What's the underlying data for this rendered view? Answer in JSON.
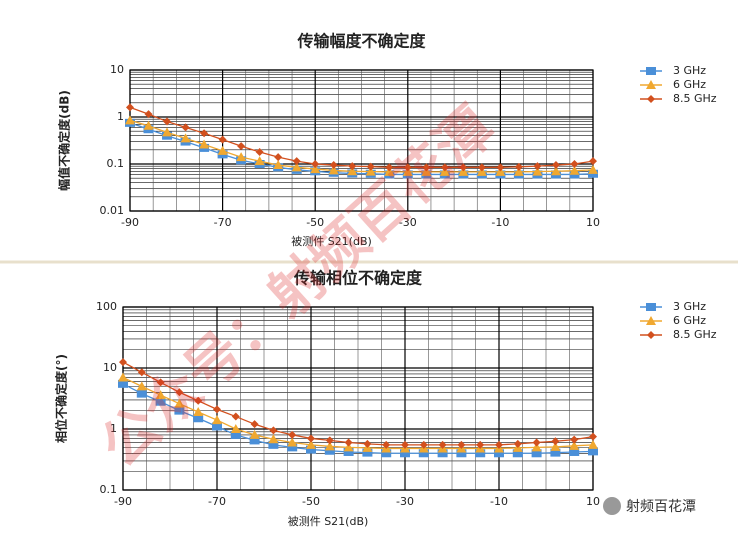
{
  "chart_data": [
    {
      "type": "line",
      "title": "传输幅度不确定度",
      "xlabel": "被测件 S21(dB)",
      "ylabel": "幅值不确定度(dB)",
      "x": [
        -90,
        -86,
        -82,
        -78,
        -74,
        -70,
        -66,
        -62,
        -58,
        -54,
        -50,
        -46,
        -42,
        -38,
        -34,
        -30,
        -26,
        -22,
        -18,
        -14,
        -10,
        -6,
        -2,
        2,
        6,
        10
      ],
      "series": [
        {
          "name": "3 GHz",
          "color": "#4a8fd8",
          "marker": "square",
          "values": [
            0.75,
            0.55,
            0.4,
            0.3,
            0.22,
            0.16,
            0.12,
            0.1,
            0.085,
            0.075,
            0.07,
            0.065,
            0.063,
            0.062,
            0.06,
            0.06,
            0.06,
            0.06,
            0.06,
            0.06,
            0.06,
            0.06,
            0.06,
            0.06,
            0.06,
            0.062
          ]
        },
        {
          "name": "6 GHz",
          "color": "#f0a830",
          "marker": "triangle",
          "values": [
            0.85,
            0.65,
            0.47,
            0.35,
            0.26,
            0.19,
            0.14,
            0.115,
            0.095,
            0.085,
            0.078,
            0.073,
            0.07,
            0.069,
            0.068,
            0.068,
            0.068,
            0.068,
            0.068,
            0.068,
            0.068,
            0.068,
            0.069,
            0.07,
            0.072,
            0.075
          ]
        },
        {
          "name": "8.5 GHz",
          "color": "#d2501e",
          "marker": "diamond",
          "values": [
            1.6,
            1.15,
            0.8,
            0.6,
            0.45,
            0.33,
            0.24,
            0.18,
            0.14,
            0.115,
            0.1,
            0.095,
            0.09,
            0.088,
            0.085,
            0.085,
            0.085,
            0.085,
            0.085,
            0.085,
            0.085,
            0.087,
            0.09,
            0.095,
            0.1,
            0.115
          ]
        }
      ],
      "xlim": [
        -90,
        10
      ],
      "xticks": [
        -90,
        -70,
        -50,
        -30,
        -10,
        10
      ],
      "ylim": [
        0.01,
        10
      ],
      "yticks": [
        0.01,
        0.1,
        1,
        10
      ],
      "log_y": true,
      "grid": true,
      "minor_grid": true,
      "legend": "right"
    },
    {
      "type": "line",
      "title": "传输相位不确定度",
      "xlabel": "被测件 S21(dB)",
      "ylabel": "相位不确定度(°)",
      "x": [
        -90,
        -86,
        -82,
        -78,
        -74,
        -70,
        -66,
        -62,
        -58,
        -54,
        -50,
        -46,
        -42,
        -38,
        -34,
        -30,
        -26,
        -22,
        -18,
        -14,
        -10,
        -6,
        -2,
        2,
        6,
        10
      ],
      "series": [
        {
          "name": "3 GHz",
          "color": "#4a8fd8",
          "marker": "square",
          "values": [
            5.5,
            3.8,
            2.8,
            2,
            1.5,
            1.1,
            0.8,
            0.65,
            0.55,
            0.5,
            0.46,
            0.44,
            0.42,
            0.41,
            0.4,
            0.4,
            0.4,
            0.4,
            0.4,
            0.4,
            0.4,
            0.4,
            0.4,
            0.41,
            0.42,
            0.43
          ]
        },
        {
          "name": "6 GHz",
          "color": "#f0a830",
          "marker": "triangle",
          "values": [
            7,
            5,
            3.6,
            2.6,
            1.9,
            1.4,
            1.0,
            0.8,
            0.68,
            0.6,
            0.55,
            0.52,
            0.5,
            0.49,
            0.48,
            0.48,
            0.48,
            0.48,
            0.48,
            0.48,
            0.48,
            0.49,
            0.5,
            0.51,
            0.53,
            0.55
          ]
        },
        {
          "name": "8.5 GHz",
          "color": "#d2501e",
          "marker": "diamond",
          "values": [
            12.5,
            8.5,
            5.8,
            4,
            2.9,
            2.1,
            1.6,
            1.2,
            0.95,
            0.8,
            0.7,
            0.65,
            0.6,
            0.57,
            0.55,
            0.55,
            0.55,
            0.55,
            0.55,
            0.55,
            0.55,
            0.57,
            0.6,
            0.63,
            0.67,
            0.75
          ]
        }
      ],
      "xlim": [
        -90,
        10
      ],
      "xticks": [
        -90,
        -70,
        -50,
        -30,
        -10,
        10
      ],
      "ylim": [
        0.1,
        100
      ],
      "yticks": [
        0.1,
        1,
        10,
        100
      ],
      "log_y": true,
      "grid": true,
      "minor_grid": true,
      "legend": "right"
    }
  ],
  "watermark": "公众号：射频百花潭",
  "logo": "射频百花潭"
}
